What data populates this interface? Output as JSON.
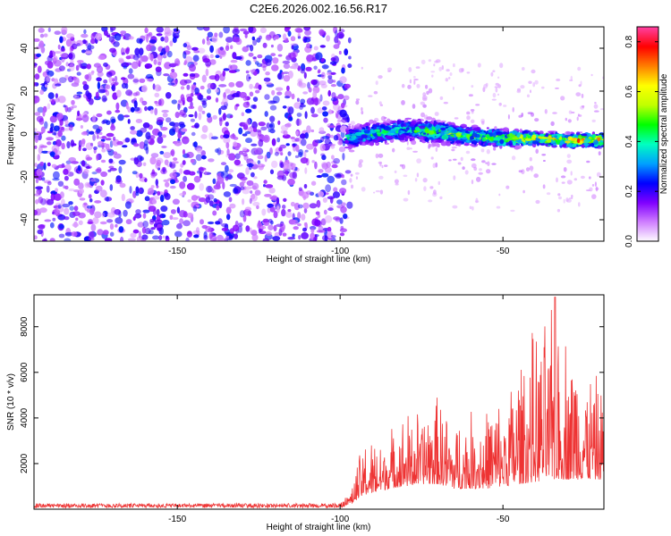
{
  "title": "C2E6.2026.002.16.56.R17",
  "chart_data": [
    {
      "type": "heatmap",
      "title": "C2E6.2026.002.16.56.R17",
      "xlabel": "Height of straight line (km)",
      "ylabel": "Frequency (Hz)",
      "xlim": [
        -194,
        -19
      ],
      "ylim": [
        -50,
        50
      ],
      "x_ticks": [
        -150,
        -100,
        -50
      ],
      "x_tick_labels": [
        "-150",
        "-100",
        "-50"
      ],
      "y_ticks": [
        -40,
        -20,
        0,
        20,
        40
      ],
      "y_tick_labels": [
        "-40",
        "-20",
        "0",
        "20",
        "40"
      ],
      "noise_region": {
        "x_range": [
          -194,
          -97
        ],
        "frequency_range": [
          -50,
          50
        ],
        "amplitude_range": [
          0.05,
          0.25
        ]
      },
      "signal_band": {
        "x": [
          -98,
          -90,
          -80,
          -70,
          -60,
          -50,
          -40,
          -30,
          -20
        ],
        "center_frequency": [
          -2,
          0,
          2,
          1,
          -1,
          -2,
          -2,
          -3,
          -3
        ],
        "half_width": [
          5,
          5,
          5,
          5,
          4,
          4,
          3,
          3,
          3
        ],
        "peak_amplitude": [
          0.45,
          0.5,
          0.5,
          0.55,
          0.6,
          0.65,
          0.75,
          0.8,
          0.8
        ]
      },
      "colorbar": {
        "label": "Normalized spectral amplitude",
        "range": [
          0,
          0.86
        ],
        "ticks": [
          0.0,
          0.2,
          0.4,
          0.6,
          0.8
        ],
        "tick_labels": [
          "0.0",
          "0.2",
          "0.4",
          "0.6",
          "0.8"
        ],
        "colormap": [
          "#ffffff",
          "#d080ff",
          "#8000ff",
          "#0000ff",
          "#00a0ff",
          "#00ffc0",
          "#00ff00",
          "#c0ff00",
          "#ffff00",
          "#ff8000",
          "#ff0000",
          "#ff40a0"
        ]
      }
    },
    {
      "type": "line",
      "xlabel": "Height of straight line (km)",
      "ylabel": "SNR (10 * v/v)",
      "xlim": [
        -194,
        -19
      ],
      "ylim": [
        0,
        9400
      ],
      "x_ticks": [
        -150,
        -100,
        -50
      ],
      "x_tick_labels": [
        "-150",
        "-100",
        "-50"
      ],
      "y_ticks": [
        2000,
        4000,
        6000,
        8000
      ],
      "y_tick_labels": [
        "2000",
        "4000",
        "6000",
        "8000"
      ],
      "color": "#ee3333",
      "envelope": {
        "x": [
          -194,
          -100,
          -97,
          -95,
          -93,
          -90,
          -85,
          -80,
          -75,
          -72,
          -70,
          -65,
          -60,
          -55,
          -50,
          -45,
          -40,
          -35,
          -30,
          -25,
          -20
        ],
        "baseline": [
          60,
          60,
          150,
          400,
          600,
          700,
          900,
          1000,
          1100,
          1100,
          1100,
          900,
          900,
          900,
          1000,
          1100,
          1200,
          1300,
          1300,
          1300,
          1300
        ],
        "peak": [
          250,
          250,
          800,
          1700,
          2900,
          2800,
          3200,
          4000,
          4200,
          4600,
          4700,
          3700,
          4000,
          4400,
          4600,
          6600,
          7200,
          8000,
          7300,
          6400,
          5100
        ]
      },
      "max_value": 9300,
      "max_at_x": -34
    }
  ]
}
